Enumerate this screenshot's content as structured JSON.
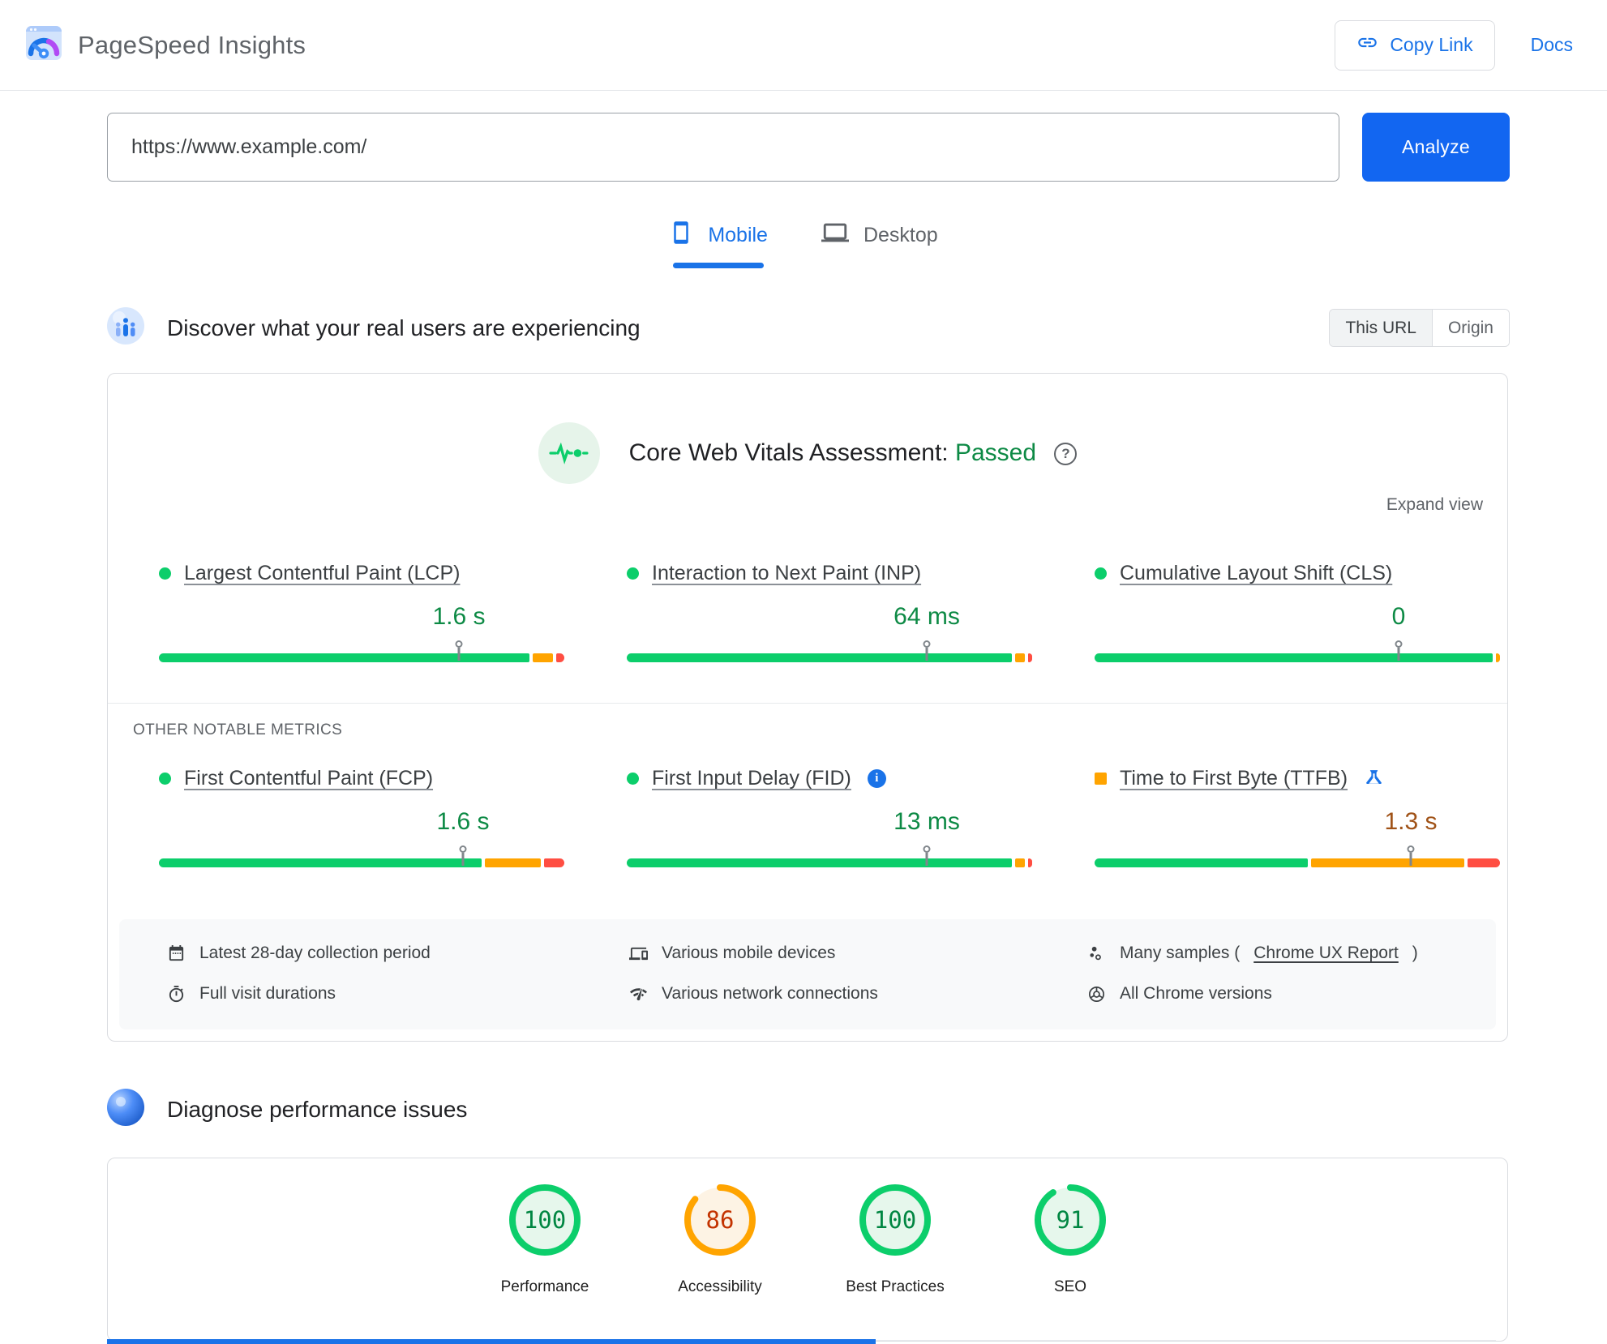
{
  "header": {
    "title": "PageSpeed Insights",
    "copy_link": "Copy Link",
    "docs": "Docs"
  },
  "url_bar": {
    "value": "https://www.example.com/",
    "analyze": "Analyze"
  },
  "tabs": [
    {
      "label": "Mobile",
      "active": true
    },
    {
      "label": "Desktop",
      "active": false
    }
  ],
  "crux": {
    "heading": "Discover what your real users are experiencing",
    "toggle": {
      "this_url": "This URL",
      "origin": "Origin"
    },
    "cwv_title": "Core Web Vitals Assessment:",
    "cwv_status": "Passed",
    "expand": "Expand view",
    "other_label": "OTHER NOTABLE METRICS",
    "core_metrics": [
      {
        "name": "Largest Contentful Paint (LCP)",
        "value": "1.6 s",
        "value_color": "#0d8a45",
        "bullet_shape": "circle",
        "bullet_color": "#0cce6b",
        "marker_pct": 74,
        "distribution": {
          "good": 91,
          "needs_improvement": 5,
          "poor": 2
        }
      },
      {
        "name": "Interaction to Next Paint (INP)",
        "value": "64 ms",
        "value_color": "#0d8a45",
        "bullet_shape": "circle",
        "bullet_color": "#0cce6b",
        "marker_pct": 74,
        "distribution": {
          "good": 95,
          "needs_improvement": 2.5,
          "poor": 1
        }
      },
      {
        "name": "Cumulative Layout Shift (CLS)",
        "value": "0",
        "value_color": "#0d8a45",
        "bullet_shape": "circle",
        "bullet_color": "#0cce6b",
        "marker_pct": 75,
        "distribution": {
          "good": 99.4,
          "needs_improvement": 0.6,
          "poor": 0
        }
      }
    ],
    "other_metrics": [
      {
        "name": "First Contentful Paint (FCP)",
        "value": "1.6 s",
        "value_color": "#0d8a45",
        "bullet_shape": "circle",
        "bullet_color": "#0cce6b",
        "marker_pct": 75,
        "distribution": {
          "good": 80,
          "needs_improvement": 14,
          "poor": 5
        }
      },
      {
        "name": "First Input Delay (FID)",
        "value": "13 ms",
        "value_color": "#0d8a45",
        "bullet_shape": "circle",
        "bullet_color": "#0cce6b",
        "marker_pct": 74,
        "icon": "info-icon",
        "distribution": {
          "good": 95,
          "needs_improvement": 2.5,
          "poor": 1
        }
      },
      {
        "name": "Time to First Byte (TTFB)",
        "value": "1.3 s",
        "value_color": "#a05217",
        "bullet_shape": "square",
        "bullet_color": "#ffa400",
        "marker_pct": 78,
        "icon": "flask-icon",
        "distribution": {
          "good": 53,
          "needs_improvement": 38,
          "poor": 8
        }
      }
    ],
    "footnote_columns": [
      [
        {
          "icon": "calendar-icon",
          "text": "Latest 28-day collection period"
        },
        {
          "icon": "timer-icon",
          "text": "Full visit durations"
        }
      ],
      [
        {
          "icon": "devices-icon",
          "text": "Various mobile devices"
        },
        {
          "icon": "network-icon",
          "text": "Various network connections"
        }
      ],
      [
        {
          "icon": "samples-icon",
          "text_before": "Many samples (",
          "link": "Chrome UX Report",
          "text_after": ")"
        },
        {
          "icon": "chrome-icon",
          "text": "All Chrome versions"
        }
      ]
    ]
  },
  "diagnose": {
    "heading": "Diagnose performance issues",
    "scores": [
      {
        "label": "Performance",
        "value": 100,
        "arc_color": "#0cce6b",
        "tint": "#e6f7ec",
        "number_color": "#018642"
      },
      {
        "label": "Accessibility",
        "value": 86,
        "arc_color": "#ffa400",
        "tint": "#fdf3e4",
        "number_color": "#c33300"
      },
      {
        "label": "Best Practices",
        "value": 100,
        "arc_color": "#0cce6b",
        "tint": "#e6f7ec",
        "number_color": "#018642"
      },
      {
        "label": "SEO",
        "value": 91,
        "arc_color": "#0cce6b",
        "tint": "#e6f7ec",
        "number_color": "#018642"
      }
    ]
  },
  "colors": {
    "good": "#0cce6b",
    "average": "#ffa400",
    "poor": "#ff4e42",
    "link_blue": "#1a73e8",
    "analyze_blue": "#1266f1",
    "passed_green": "#0d8a45"
  }
}
